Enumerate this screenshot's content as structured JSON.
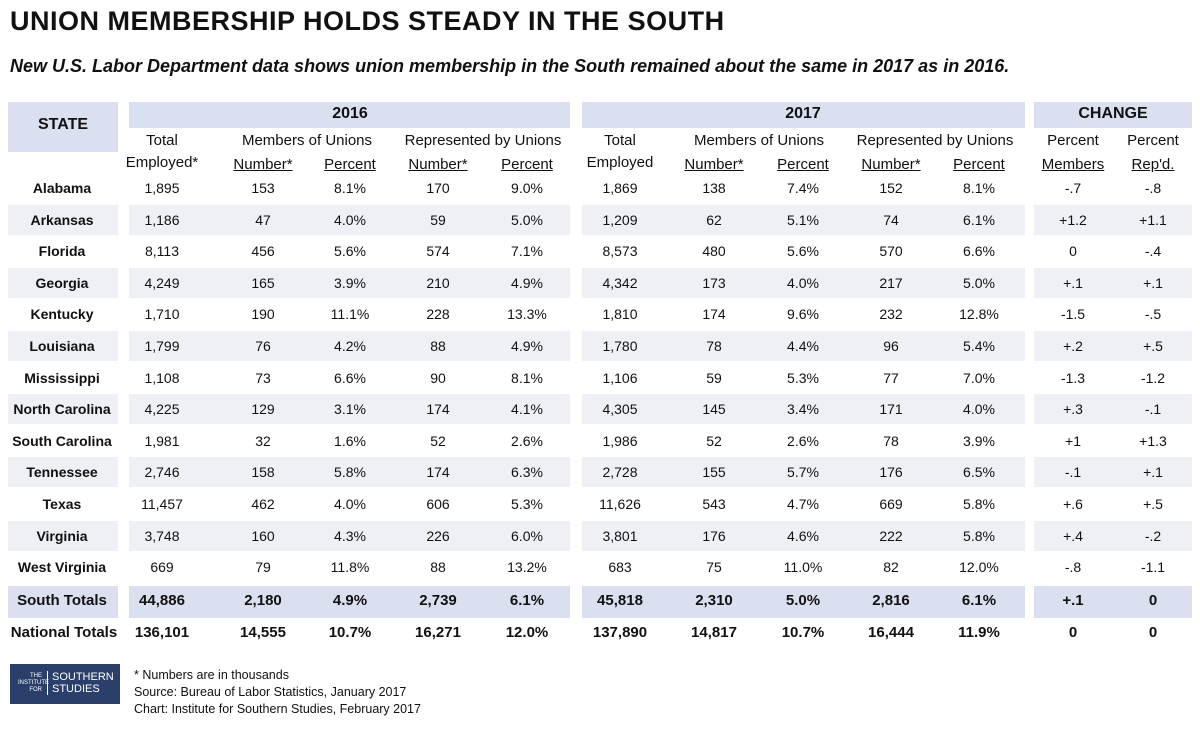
{
  "title": "UNION MEMBERSHIP HOLDS STEADY IN THE SOUTH",
  "subtitle": "New U.S. Labor Department data shows union membership in the South remained about the same in 2017 as in 2016.",
  "headers": {
    "state": "STATE",
    "y2016": "2016",
    "y2017": "2017",
    "change": "CHANGE",
    "total_employed_2016": [
      "Total",
      "Employed*"
    ],
    "members_of_unions": "Members of Unions",
    "represented_by_unions": "Represented by Unions",
    "number_star": "Number*",
    "percent": "Percent",
    "total_employed_2017": [
      "Total",
      "Employed"
    ],
    "percent_members": [
      "Percent",
      "Members"
    ],
    "percent_repd": [
      "Percent",
      "Rep'd."
    ]
  },
  "rows": [
    {
      "state": "Alabama",
      "cols": [
        "1,895",
        "153",
        "8.1%",
        "170",
        "9.0%",
        "1,869",
        "138",
        "7.4%",
        "152",
        "8.1%",
        "-.7",
        "-.8"
      ]
    },
    {
      "state": "Arkansas",
      "cols": [
        "1,186",
        "47",
        "4.0%",
        "59",
        "5.0%",
        "1,209",
        "62",
        "5.1%",
        "74",
        "6.1%",
        "+1.2",
        "+1.1"
      ]
    },
    {
      "state": "Florida",
      "cols": [
        "8,113",
        "456",
        "5.6%",
        "574",
        "7.1%",
        "8,573",
        "480",
        "5.6%",
        "570",
        "6.6%",
        "0",
        "-.4"
      ]
    },
    {
      "state": "Georgia",
      "cols": [
        "4,249",
        "165",
        "3.9%",
        "210",
        "4.9%",
        "4,342",
        "173",
        "4.0%",
        "217",
        "5.0%",
        "+.1",
        "+.1"
      ]
    },
    {
      "state": "Kentucky",
      "cols": [
        "1,710",
        "190",
        "11.1%",
        "228",
        "13.3%",
        "1,810",
        "174",
        "9.6%",
        "232",
        "12.8%",
        "-1.5",
        "-.5"
      ]
    },
    {
      "state": "Louisiana",
      "cols": [
        "1,799",
        "76",
        "4.2%",
        "88",
        "4.9%",
        "1,780",
        "78",
        "4.4%",
        "96",
        "5.4%",
        "+.2",
        "+.5"
      ]
    },
    {
      "state": "Mississippi",
      "cols": [
        "1,108",
        "73",
        "6.6%",
        "90",
        "8.1%",
        "1,106",
        "59",
        "5.3%",
        "77",
        "7.0%",
        "-1.3",
        "-1.2"
      ]
    },
    {
      "state": "North Carolina",
      "cols": [
        "4,225",
        "129",
        "3.1%",
        "174",
        "4.1%",
        "4,305",
        "145",
        "3.4%",
        "171",
        "4.0%",
        "+.3",
        "-.1"
      ]
    },
    {
      "state": "South Carolina",
      "cols": [
        "1,981",
        "32",
        "1.6%",
        "52",
        "2.6%",
        "1,986",
        "52",
        "2.6%",
        "78",
        "3.9%",
        "+1",
        "+1.3"
      ]
    },
    {
      "state": "Tennessee",
      "cols": [
        "2,746",
        "158",
        "5.8%",
        "174",
        "6.3%",
        "2,728",
        "155",
        "5.7%",
        "176",
        "6.5%",
        "-.1",
        "+.1"
      ]
    },
    {
      "state": "Texas",
      "cols": [
        "11,457",
        "462",
        "4.0%",
        "606",
        "5.3%",
        "11,626",
        "543",
        "4.7%",
        "669",
        "5.8%",
        "+.6",
        "+.5"
      ]
    },
    {
      "state": "Virginia",
      "cols": [
        "3,748",
        "160",
        "4.3%",
        "226",
        "6.0%",
        "3,801",
        "176",
        "4.6%",
        "222",
        "5.8%",
        "+.4",
        "-.2"
      ]
    },
    {
      "state": "West Virginia",
      "cols": [
        "669",
        "79",
        "11.8%",
        "88",
        "13.2%",
        "683",
        "75",
        "11.0%",
        "82",
        "12.0%",
        "-.8",
        "-1.1"
      ]
    }
  ],
  "south_totals": {
    "state": "South Totals",
    "cols": [
      "44,886",
      "2,180",
      "4.9%",
      "2,739",
      "6.1%",
      "45,818",
      "2,310",
      "5.0%",
      "2,816",
      "6.1%",
      "+.1",
      "0"
    ]
  },
  "national_totals": {
    "state": "National Totals",
    "cols": [
      "136,101",
      "14,555",
      "10.7%",
      "16,271",
      "12.0%",
      "137,890",
      "14,817",
      "10.7%",
      "16,444",
      "11.9%",
      "0",
      "0"
    ]
  },
  "footnotes": {
    "note": "* Numbers are in thousands",
    "source": "Source: Bureau of Labor Statistics, January 2017",
    "chart": "Chart: Institute for Southern Studies, February 2017"
  },
  "logo": {
    "small_lines": [
      "THE",
      "INSTITUTE",
      "FOR"
    ],
    "big_lines": [
      "SOUTHERN",
      "STUDIES"
    ]
  },
  "colors": {
    "header_shade": "#dbe0f0",
    "row_stripe": "#eef0f6",
    "logo_bg": "#2b3f6b"
  }
}
